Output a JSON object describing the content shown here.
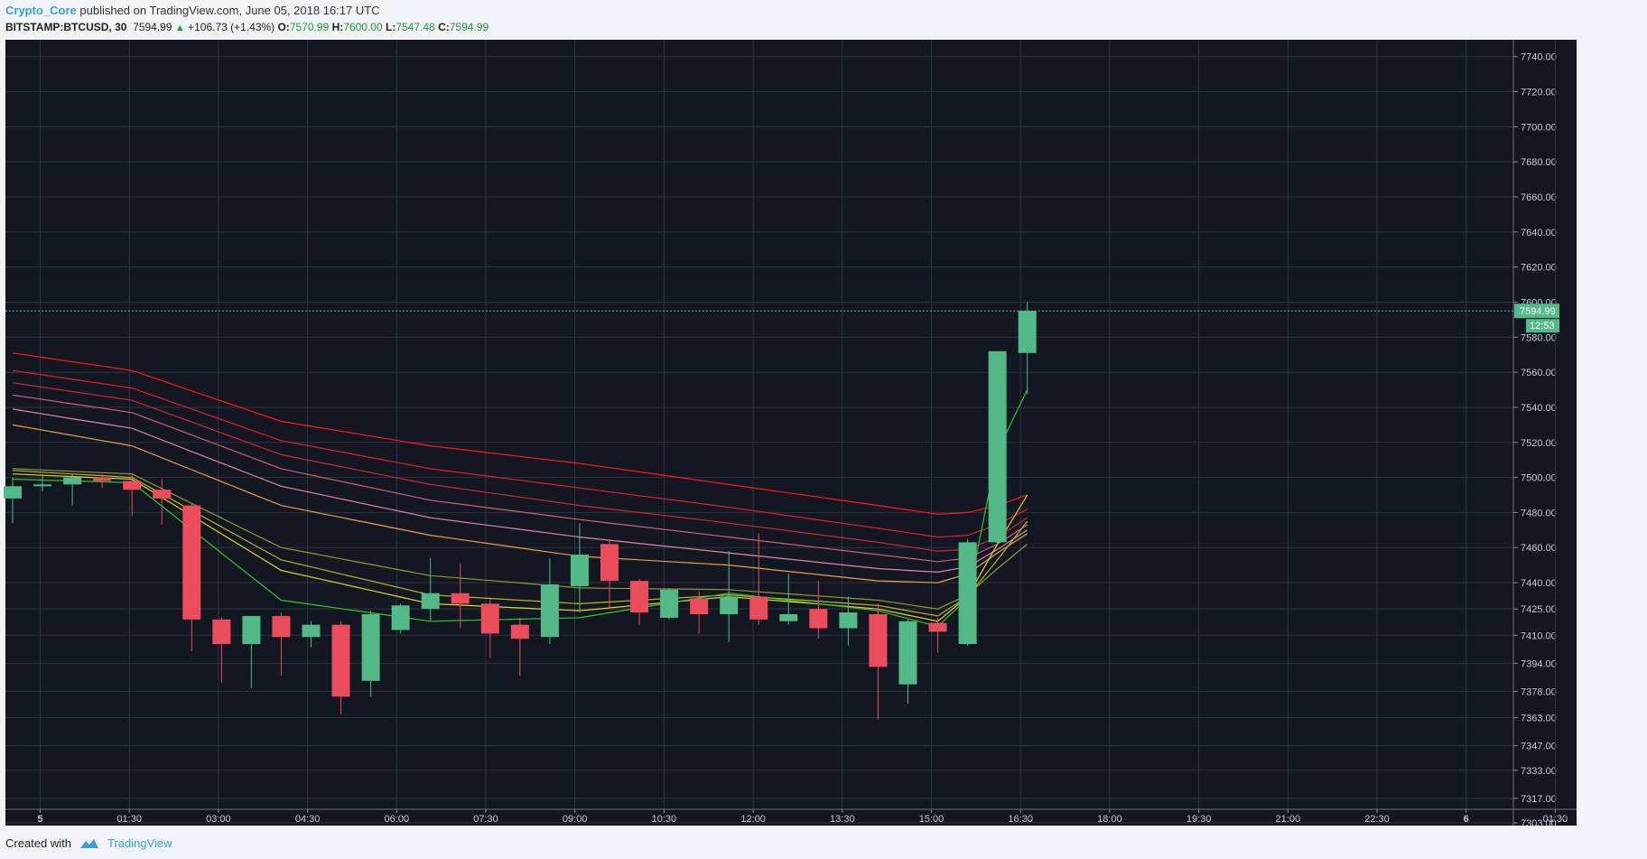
{
  "header": {
    "author": "Crypto_Core",
    "published": "published on TradingView.com, June 05, 2018 16:17 UTC"
  },
  "quote": {
    "symbol": "BITSTAMP:BTCUSD, 30",
    "last": "7594.99",
    "change": "+106.73 (+1.43%)",
    "o_label": "O:",
    "o": "7570.99",
    "h_label": "H:",
    "h": "7600.00",
    "l_label": "L:",
    "l": "7547.48",
    "c_label": "C:",
    "c": "7594.99"
  },
  "footer": {
    "created_with": "Created with",
    "brand": "TradingView"
  },
  "colors": {
    "background": "#131722",
    "grid": "#2f3442",
    "up": "#53b987",
    "down": "#eb4d5c",
    "axis_text": "#c8ccd4",
    "price_line": "#53b987"
  },
  "chart_data": {
    "type": "candlestick",
    "ylim": [
      7303,
      7745
    ],
    "price_ticks": [
      "7740.00",
      "7720.00",
      "7700.00",
      "7680.00",
      "7660.00",
      "7640.00",
      "7620.00",
      "7600.00",
      "7580.00",
      "7560.00",
      "7540.00",
      "7520.00",
      "7500.00",
      "7480.00",
      "7460.00",
      "7440.00",
      "7425.00",
      "7410.00",
      "7394.00",
      "7378.00",
      "7363.00",
      "7347.00",
      "7333.00",
      "7317.00",
      "7303.00"
    ],
    "time_ticks": [
      {
        "label": "5",
        "bold": true
      },
      {
        "label": "01:30"
      },
      {
        "label": "03:00"
      },
      {
        "label": "04:30"
      },
      {
        "label": "06:00"
      },
      {
        "label": "07:30"
      },
      {
        "label": "09:00"
      },
      {
        "label": "10:30"
      },
      {
        "label": "12:00"
      },
      {
        "label": "13:30"
      },
      {
        "label": "15:00"
      },
      {
        "label": "16:30"
      },
      {
        "label": "18:00"
      },
      {
        "label": "19:30"
      },
      {
        "label": "21:00"
      },
      {
        "label": "22:30"
      },
      {
        "label": "6",
        "bold": true
      },
      {
        "label": "01:30"
      }
    ],
    "last_price_label": "7594.99",
    "countdown_label": "12:53",
    "last_price": 7594.99,
    "candles": [
      {
        "o": 7488,
        "h": 7500,
        "l": 7474,
        "c": 7495
      },
      {
        "o": 7495,
        "h": 7502,
        "l": 7492,
        "c": 7496
      },
      {
        "o": 7496,
        "h": 7502,
        "l": 7484,
        "c": 7500
      },
      {
        "o": 7500,
        "h": 7502,
        "l": 7494,
        "c": 7498
      },
      {
        "o": 7498,
        "h": 7502,
        "l": 7478,
        "c": 7493
      },
      {
        "o": 7493,
        "h": 7499,
        "l": 7473,
        "c": 7488
      },
      {
        "o": 7484,
        "h": 7485,
        "l": 7401,
        "c": 7419
      },
      {
        "o": 7419,
        "h": 7420,
        "l": 7383,
        "c": 7405
      },
      {
        "o": 7405,
        "h": 7421,
        "l": 7380,
        "c": 7421
      },
      {
        "o": 7421,
        "h": 7423,
        "l": 7387,
        "c": 7409
      },
      {
        "o": 7409,
        "h": 7418,
        "l": 7403,
        "c": 7416
      },
      {
        "o": 7416,
        "h": 7418,
        "l": 7365,
        "c": 7375
      },
      {
        "o": 7384,
        "h": 7424,
        "l": 7375,
        "c": 7422
      },
      {
        "o": 7413,
        "h": 7428,
        "l": 7411,
        "c": 7427
      },
      {
        "o": 7425,
        "h": 7454,
        "l": 7418,
        "c": 7434
      },
      {
        "o": 7434,
        "h": 7451,
        "l": 7414,
        "c": 7428
      },
      {
        "o": 7428,
        "h": 7431,
        "l": 7397,
        "c": 7411
      },
      {
        "o": 7416,
        "h": 7420,
        "l": 7387,
        "c": 7408
      },
      {
        "o": 7409,
        "h": 7454,
        "l": 7405,
        "c": 7439
      },
      {
        "o": 7438,
        "h": 7474,
        "l": 7423,
        "c": 7456
      },
      {
        "o": 7462,
        "h": 7465,
        "l": 7425,
        "c": 7441
      },
      {
        "o": 7441,
        "h": 7442,
        "l": 7416,
        "c": 7423
      },
      {
        "o": 7420,
        "h": 7437,
        "l": 7419,
        "c": 7436
      },
      {
        "o": 7431,
        "h": 7435,
        "l": 7411,
        "c": 7422
      },
      {
        "o": 7422,
        "h": 7458,
        "l": 7406,
        "c": 7432
      },
      {
        "o": 7432,
        "h": 7468,
        "l": 7416,
        "c": 7419
      },
      {
        "o": 7418,
        "h": 7445,
        "l": 7416,
        "c": 7422
      },
      {
        "o": 7425,
        "h": 7441,
        "l": 7408,
        "c": 7414
      },
      {
        "o": 7414,
        "h": 7432,
        "l": 7404,
        "c": 7423
      },
      {
        "o": 7422,
        "h": 7428,
        "l": 7362,
        "c": 7392
      },
      {
        "o": 7382,
        "h": 7419,
        "l": 7371,
        "c": 7418
      },
      {
        "o": 7417,
        "h": 7420,
        "l": 7400,
        "c": 7412
      },
      {
        "o": 7405,
        "h": 7465,
        "l": 7404,
        "c": 7463
      },
      {
        "o": 7463,
        "h": 7572,
        "l": 7462,
        "c": 7572
      },
      {
        "o": 7570.99,
        "h": 7600,
        "l": 7547.48,
        "c": 7594.99
      }
    ],
    "ribbon_knots": [
      0,
      4,
      9,
      14,
      19,
      24,
      29,
      31,
      32,
      33,
      34
    ],
    "ribbon": [
      {
        "color": "#ff1a1a",
        "values": [
          7571,
          7561,
          7532,
          7518,
          7508,
          7496,
          7484,
          7479,
          7480,
          7484,
          7490
        ]
      },
      {
        "color": "#e01f2d",
        "values": [
          7561,
          7551,
          7521,
          7505,
          7494,
          7483,
          7471,
          7466,
          7467,
          7473,
          7482
        ]
      },
      {
        "color": "#c92839",
        "values": [
          7554,
          7544,
          7513,
          7496,
          7484,
          7474,
          7463,
          7458,
          7459,
          7466,
          7477
        ]
      },
      {
        "color": "#d26170",
        "values": [
          7547,
          7537,
          7505,
          7487,
          7476,
          7466,
          7456,
          7452,
          7454,
          7462,
          7473
        ]
      },
      {
        "color": "#e0889a",
        "values": [
          7539,
          7528,
          7495,
          7477,
          7466,
          7457,
          7448,
          7446,
          7449,
          7459,
          7470
        ]
      },
      {
        "color": "#e8a04a",
        "values": [
          7530,
          7518,
          7484,
          7467,
          7455,
          7450,
          7441,
          7440,
          7445,
          7457,
          7468
        ]
      },
      {
        "color": "#8f9a2f",
        "values": [
          7505,
          7502,
          7460,
          7444,
          7437,
          7436,
          7430,
          7425,
          7433,
          7448,
          7462
        ]
      },
      {
        "color": "#b9b432",
        "values": [
          7504,
          7500,
          7453,
          7433,
          7428,
          7433,
          7427,
          7421,
          7432,
          7453,
          7475
        ]
      },
      {
        "color": "#e3d626",
        "values": [
          7502,
          7499,
          7447,
          7428,
          7424,
          7432,
          7425,
          7418,
          7432,
          7462,
          7490
        ]
      },
      {
        "color": "#2ec62c",
        "values": [
          7499,
          7497,
          7430,
          7418,
          7420,
          7434,
          7424,
          7415,
          7431,
          7515,
          7550
        ]
      }
    ]
  }
}
